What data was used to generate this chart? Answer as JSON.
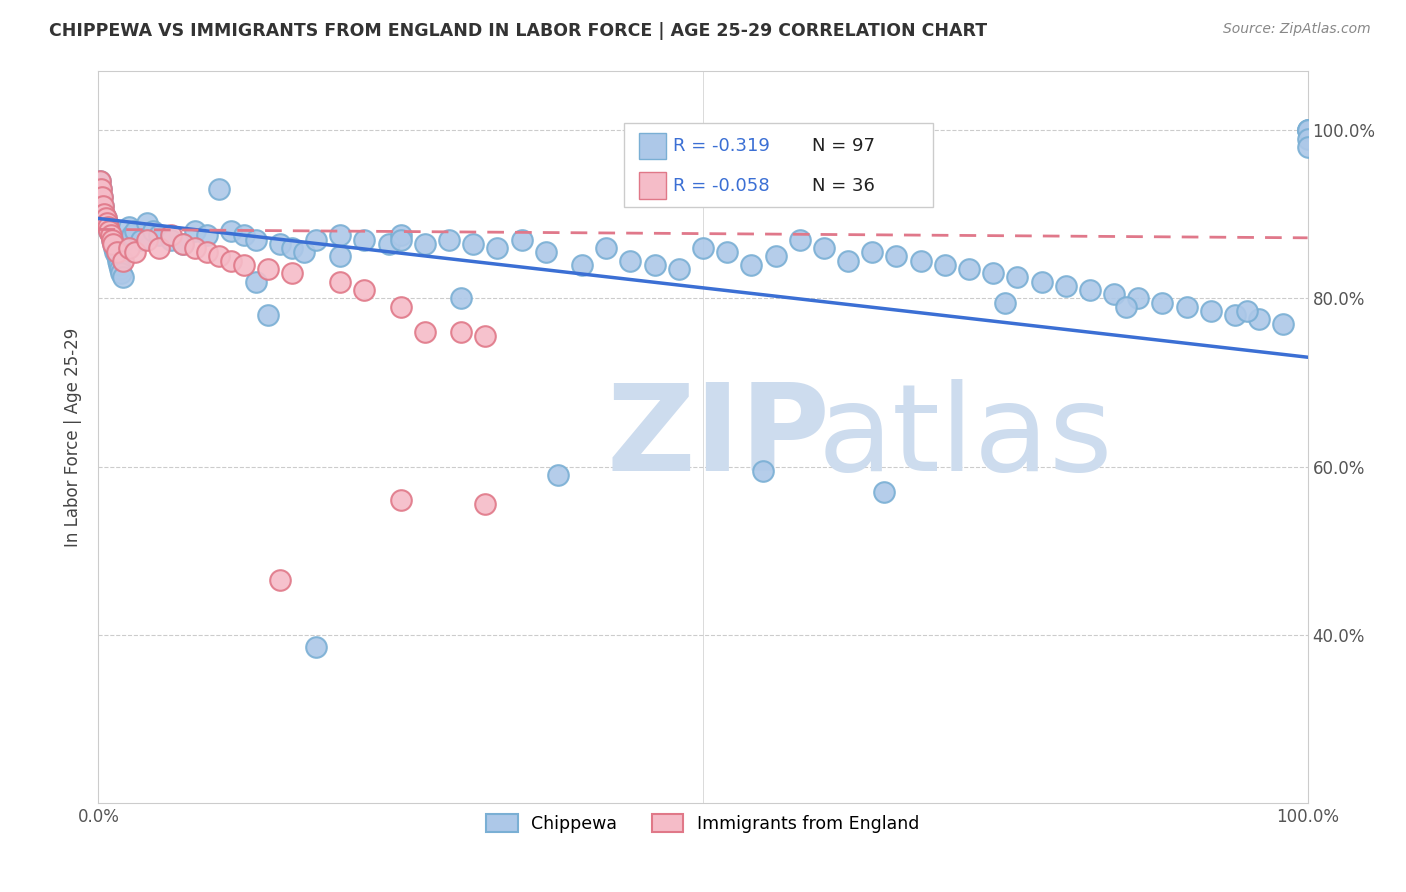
{
  "title": "CHIPPEWA VS IMMIGRANTS FROM ENGLAND IN LABOR FORCE | AGE 25-29 CORRELATION CHART",
  "source": "Source: ZipAtlas.com",
  "ylabel": "In Labor Force | Age 25-29",
  "xlim": [
    0.0,
    1.0
  ],
  "ylim": [
    0.2,
    1.07
  ],
  "chippewa_R": "-0.319",
  "chippewa_N": "97",
  "england_R": "-0.058",
  "england_N": "36",
  "legend_labels": [
    "Chippewa",
    "Immigrants from England"
  ],
  "chippewa_color": "#adc8e8",
  "chippewa_edge": "#7aafd4",
  "england_color": "#f5bcc8",
  "england_edge": "#e07888",
  "blue_line_color": "#3b6fd4",
  "pink_line_color": "#e0788a",
  "legend_r_color": "#3b6fd4",
  "watermark_zip": "ZIP",
  "watermark_atlas": "atlas",
  "watermark_color": "#cddcee",
  "grid_color": "#cccccc",
  "chippewa_x": [
    0.001,
    0.002,
    0.003,
    0.004,
    0.005,
    0.006,
    0.007,
    0.008,
    0.009,
    0.01,
    0.011,
    0.012,
    0.013,
    0.014,
    0.015,
    0.016,
    0.017,
    0.018,
    0.019,
    0.02,
    0.022,
    0.025,
    0.028,
    0.03,
    0.035,
    0.04,
    0.045,
    0.05,
    0.06,
    0.07,
    0.08,
    0.09,
    0.1,
    0.11,
    0.12,
    0.13,
    0.15,
    0.16,
    0.17,
    0.18,
    0.2,
    0.22,
    0.24,
    0.25,
    0.27,
    0.29,
    0.31,
    0.33,
    0.35,
    0.37,
    0.4,
    0.42,
    0.44,
    0.46,
    0.48,
    0.5,
    0.52,
    0.54,
    0.56,
    0.58,
    0.6,
    0.62,
    0.64,
    0.66,
    0.68,
    0.7,
    0.72,
    0.74,
    0.76,
    0.78,
    0.8,
    0.82,
    0.84,
    0.86,
    0.88,
    0.9,
    0.92,
    0.94,
    0.96,
    0.98,
    1.0,
    1.0,
    1.0,
    1.0,
    1.0,
    0.14,
    0.25,
    0.13,
    0.2,
    0.3,
    0.55,
    0.65,
    0.75,
    0.85,
    0.95,
    0.18,
    0.38
  ],
  "chippewa_y": [
    0.94,
    0.93,
    0.92,
    0.91,
    0.9,
    0.895,
    0.89,
    0.885,
    0.88,
    0.875,
    0.87,
    0.865,
    0.86,
    0.855,
    0.85,
    0.845,
    0.84,
    0.835,
    0.83,
    0.825,
    0.87,
    0.885,
    0.875,
    0.88,
    0.87,
    0.89,
    0.88,
    0.875,
    0.87,
    0.865,
    0.88,
    0.875,
    0.93,
    0.88,
    0.875,
    0.87,
    0.865,
    0.86,
    0.855,
    0.87,
    0.875,
    0.87,
    0.865,
    0.875,
    0.865,
    0.87,
    0.865,
    0.86,
    0.87,
    0.855,
    0.84,
    0.86,
    0.845,
    0.84,
    0.835,
    0.86,
    0.855,
    0.84,
    0.85,
    0.87,
    0.86,
    0.845,
    0.855,
    0.85,
    0.845,
    0.84,
    0.835,
    0.83,
    0.825,
    0.82,
    0.815,
    0.81,
    0.805,
    0.8,
    0.795,
    0.79,
    0.785,
    0.78,
    0.775,
    0.77,
    1.0,
    1.0,
    1.0,
    0.99,
    0.98,
    0.78,
    0.87,
    0.82,
    0.85,
    0.8,
    0.595,
    0.57,
    0.795,
    0.79,
    0.785,
    0.385,
    0.59
  ],
  "england_x": [
    0.001,
    0.002,
    0.003,
    0.004,
    0.005,
    0.006,
    0.007,
    0.008,
    0.009,
    0.01,
    0.011,
    0.012,
    0.015,
    0.02,
    0.025,
    0.03,
    0.04,
    0.05,
    0.06,
    0.07,
    0.08,
    0.09,
    0.1,
    0.11,
    0.12,
    0.14,
    0.16,
    0.2,
    0.22,
    0.25,
    0.27,
    0.3,
    0.32,
    0.25,
    0.32,
    0.15
  ],
  "england_y": [
    0.94,
    0.93,
    0.92,
    0.91,
    0.9,
    0.895,
    0.89,
    0.885,
    0.88,
    0.875,
    0.87,
    0.865,
    0.855,
    0.845,
    0.86,
    0.855,
    0.87,
    0.86,
    0.875,
    0.865,
    0.86,
    0.855,
    0.85,
    0.845,
    0.84,
    0.835,
    0.83,
    0.82,
    0.81,
    0.79,
    0.76,
    0.76,
    0.755,
    0.56,
    0.555,
    0.465
  ],
  "blue_line_x0": 0.0,
  "blue_line_x1": 1.0,
  "blue_line_y0": 0.895,
  "blue_line_y1": 0.73,
  "pink_line_x0": 0.0,
  "pink_line_x1": 1.0,
  "pink_line_y0": 0.882,
  "pink_line_y1": 0.872
}
